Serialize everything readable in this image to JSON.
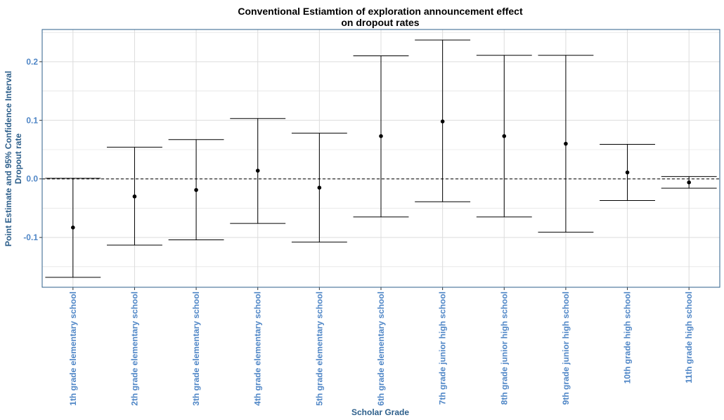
{
  "chart_data": {
    "type": "errorbar",
    "title_lines": [
      "Conventional Estiamtion of exploration announcement effect",
      "on dropout rates"
    ],
    "xlabel": "Scholar Grade",
    "ylabel_lines": [
      "Point Estimate and 95% Confidence Interval",
      "Dropout rate"
    ],
    "categories": [
      "1th grade elementary school",
      "2th grade elementary school",
      "3th grade elementary school",
      "4th grade elementary school",
      "5th grade elementary school",
      "6th grade elementary school",
      "7th grade junior high school",
      "8th grade junior high school",
      "9th grade junior high school",
      "10th grade high school",
      "11th grade high school"
    ],
    "estimates": [
      -0.083,
      -0.03,
      -0.019,
      0.014,
      -0.015,
      0.073,
      0.098,
      0.073,
      0.06,
      0.011,
      -0.006
    ],
    "ci_low": [
      -0.168,
      -0.113,
      -0.104,
      -0.076,
      -0.108,
      -0.065,
      -0.039,
      -0.065,
      -0.091,
      -0.037,
      -0.016
    ],
    "ci_high": [
      0.001,
      0.054,
      0.067,
      0.103,
      0.078,
      0.21,
      0.237,
      0.211,
      0.211,
      0.059,
      0.004
    ],
    "ylim": [
      -0.185,
      0.255
    ],
    "yticks": [
      -0.1,
      0.0,
      0.1,
      0.2
    ],
    "ytick_labels": [
      "-0.1",
      "0.0",
      "0.1",
      "0.2"
    ],
    "reference_line": 0,
    "grid": true,
    "colors": {
      "axis_text": "#4f86c6",
      "axis_title": "#2d5f8b",
      "panel_border": "#2d5f8b",
      "grid": "#dcdcdc",
      "marks": "#000000"
    }
  }
}
